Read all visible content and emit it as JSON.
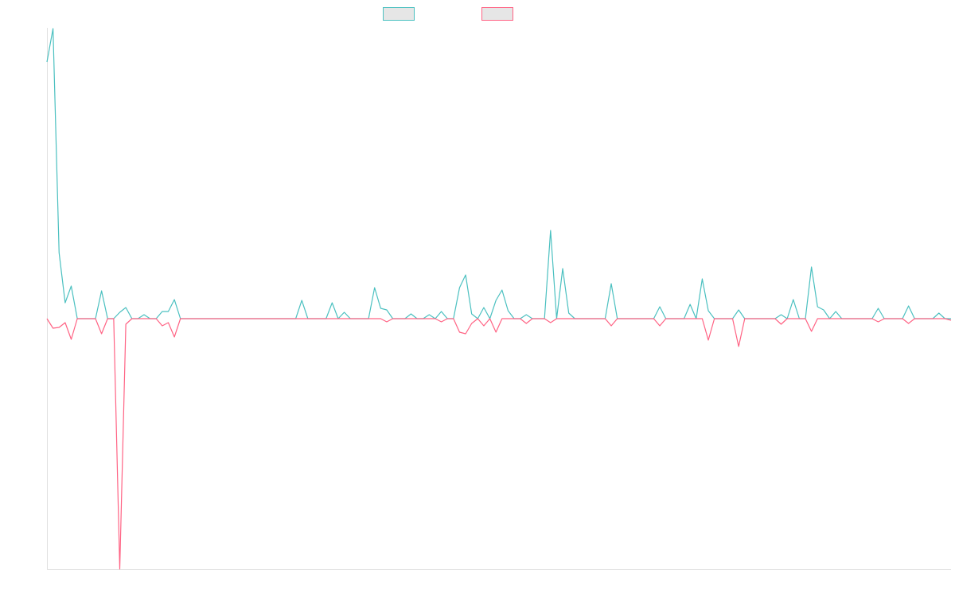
{
  "chart_data": {
    "type": "line",
    "ylim": [
      -315,
      366
    ],
    "legend": "top",
    "series": [
      {
        "color": "#4bc0c0",
        "values": [
          323,
          365,
          83,
          20,
          41,
          0,
          0,
          0,
          0,
          35,
          0,
          0,
          8,
          14,
          0,
          0,
          5,
          0,
          0,
          9,
          9,
          24,
          0,
          0,
          0,
          0,
          0,
          0,
          0,
          0,
          0,
          0,
          0,
          0,
          0,
          0,
          0,
          0,
          0,
          0,
          0,
          0,
          23,
          0,
          0,
          0,
          0,
          20,
          0,
          8,
          0,
          0,
          0,
          0,
          39,
          13,
          11,
          0,
          0,
          0,
          6,
          0,
          0,
          5,
          0,
          9,
          0,
          0,
          39,
          55,
          6,
          0,
          14,
          0,
          23,
          36,
          10,
          0,
          0,
          5,
          0,
          0,
          0,
          111,
          0,
          63,
          7,
          0,
          0,
          0,
          0,
          0,
          0,
          44,
          0,
          0,
          0,
          0,
          0,
          0,
          0,
          15,
          0,
          0,
          0,
          0,
          18,
          0,
          50,
          10,
          0,
          0,
          0,
          0,
          11,
          0,
          0,
          0,
          0,
          0,
          0,
          5,
          0,
          24,
          0,
          0,
          65,
          15,
          11,
          0,
          9,
          0,
          0,
          0,
          0,
          0,
          0,
          13,
          0,
          0,
          0,
          0,
          16,
          0,
          0,
          0,
          0,
          7,
          0,
          0
        ]
      },
      {
        "color": "#ff6384",
        "values": [
          0,
          -12,
          -11,
          -5,
          -26,
          0,
          0,
          0,
          0,
          -19,
          0,
          0,
          -315,
          -7,
          0,
          0,
          0,
          0,
          0,
          -9,
          -5,
          -23,
          0,
          0,
          0,
          0,
          0,
          0,
          0,
          0,
          0,
          0,
          0,
          0,
          0,
          0,
          0,
          0,
          0,
          0,
          0,
          0,
          0,
          0,
          0,
          0,
          0,
          0,
          0,
          0,
          0,
          0,
          0,
          0,
          0,
          0,
          -4,
          0,
          0,
          0,
          0,
          0,
          0,
          0,
          0,
          -4,
          0,
          0,
          -17,
          -19,
          -6,
          0,
          -9,
          0,
          -17,
          0,
          0,
          0,
          0,
          -6,
          0,
          0,
          0,
          -5,
          0,
          0,
          0,
          0,
          0,
          0,
          0,
          0,
          0,
          -9,
          0,
          0,
          0,
          0,
          0,
          0,
          0,
          -9,
          0,
          0,
          0,
          0,
          0,
          0,
          0,
          -27,
          0,
          0,
          0,
          0,
          -35,
          0,
          0,
          0,
          0,
          0,
          0,
          -7,
          0,
          0,
          0,
          0,
          -16,
          0,
          0,
          0,
          0,
          0,
          0,
          0,
          0,
          0,
          0,
          -4,
          0,
          0,
          0,
          0,
          -6,
          0,
          0,
          0,
          0,
          0,
          0,
          -2
        ]
      }
    ]
  }
}
